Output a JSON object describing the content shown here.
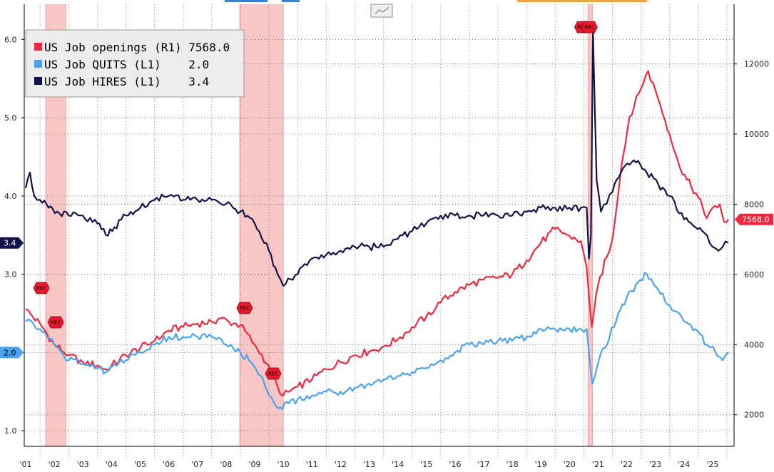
{
  "chart_data": {
    "type": "line",
    "legend": {
      "placement": "top-left",
      "items": [
        {
          "series": "openings",
          "label": "US Job openings (R1) 7568.0"
        },
        {
          "series": "quits",
          "label": "US Job QUITS (L1)    2.0"
        },
        {
          "series": "hires",
          "label": "US Job HIRES (L1)    3.4"
        }
      ]
    },
    "left_axis": {
      "ticks": [
        "1.0",
        "2.0",
        "3.0",
        "4.0",
        "5.0",
        "6.0"
      ],
      "range": [
        0.8,
        6.45
      ]
    },
    "right_axis": {
      "ticks": [
        "2000",
        "4000",
        "6000",
        "8000",
        "10000",
        "12000"
      ],
      "range": [
        1100,
        13700
      ]
    },
    "x_axis": {
      "ticks": [
        "'01",
        "'02",
        "'03",
        "'04",
        "'05",
        "'06",
        "'07",
        "'08",
        "'09",
        "'10",
        "'11",
        "'12",
        "'13",
        "'14",
        "'15",
        "'16",
        "'17",
        "'18",
        "'19",
        "'20",
        "'21",
        "'22",
        "'23",
        "'24",
        "'25"
      ],
      "range": [
        2000.45,
        2025.25
      ]
    },
    "grid": true,
    "recessions": [
      [
        2001.2,
        2001.9
      ],
      [
        2007.98,
        2009.5
      ],
      [
        2020.15,
        2020.3
      ]
    ],
    "rec_label": "REC",
    "last_value_tags": [
      {
        "axis": "left",
        "value": 3.4,
        "text": "3.4",
        "color": "#12124a",
        "text_color": "#ffffff"
      },
      {
        "axis": "left",
        "value": 2.0,
        "text": "2.0",
        "color": "#4aa3ef",
        "text_color": "#000000"
      },
      {
        "axis": "right",
        "value": 7568,
        "text": "7568.0",
        "color": "#f0283e",
        "text_color": "#ffffff"
      }
    ],
    "series": [
      {
        "name": "US Job openings (R1)",
        "axis": "right",
        "color": "#f0283e",
        "points": [
          [
            2000.5,
            5000
          ],
          [
            2001.0,
            4600
          ],
          [
            2001.5,
            4000
          ],
          [
            2002.0,
            3700
          ],
          [
            2002.5,
            3500
          ],
          [
            2003.0,
            3400
          ],
          [
            2003.3,
            3300
          ],
          [
            2003.5,
            3400
          ],
          [
            2004.0,
            3700
          ],
          [
            2004.5,
            3900
          ],
          [
            2005.0,
            4100
          ],
          [
            2005.5,
            4400
          ],
          [
            2006.0,
            4500
          ],
          [
            2006.5,
            4600
          ],
          [
            2007.0,
            4650
          ],
          [
            2007.3,
            4750
          ],
          [
            2007.6,
            4650
          ],
          [
            2008.0,
            4550
          ],
          [
            2008.5,
            4000
          ],
          [
            2009.0,
            3400
          ],
          [
            2009.3,
            2800
          ],
          [
            2009.5,
            2550
          ],
          [
            2010.0,
            2800
          ],
          [
            2010.5,
            3000
          ],
          [
            2011.0,
            3300
          ],
          [
            2011.5,
            3500
          ],
          [
            2012.0,
            3700
          ],
          [
            2012.5,
            3800
          ],
          [
            2013.0,
            3950
          ],
          [
            2013.5,
            4150
          ],
          [
            2014.0,
            4500
          ],
          [
            2014.5,
            4800
          ],
          [
            2015.0,
            5200
          ],
          [
            2015.5,
            5500
          ],
          [
            2016.0,
            5700
          ],
          [
            2016.5,
            5850
          ],
          [
            2017.0,
            5900
          ],
          [
            2017.5,
            6000
          ],
          [
            2018.0,
            6400
          ],
          [
            2018.5,
            6900
          ],
          [
            2019.0,
            7300
          ],
          [
            2019.5,
            7100
          ],
          [
            2019.9,
            6950
          ],
          [
            2020.1,
            6200
          ],
          [
            2020.28,
            4500
          ],
          [
            2020.5,
            5700
          ],
          [
            2020.8,
            6500
          ],
          [
            2021.0,
            7000
          ],
          [
            2021.3,
            9000
          ],
          [
            2021.6,
            10500
          ],
          [
            2022.0,
            11300
          ],
          [
            2022.25,
            11800
          ],
          [
            2022.6,
            11000
          ],
          [
            2023.0,
            10000
          ],
          [
            2023.3,
            9200
          ],
          [
            2023.6,
            8700
          ],
          [
            2024.0,
            8200
          ],
          [
            2024.3,
            7600
          ],
          [
            2024.5,
            7900
          ],
          [
            2024.75,
            8000
          ],
          [
            2024.9,
            7500
          ],
          [
            2025.05,
            7568
          ]
        ]
      },
      {
        "name": "US Job QUITS (L1)",
        "axis": "left",
        "color": "#4aa3ef",
        "points": [
          [
            2000.5,
            2.4
          ],
          [
            2000.7,
            2.4
          ],
          [
            2001.0,
            2.3
          ],
          [
            2001.5,
            2.1
          ],
          [
            2002.0,
            1.9
          ],
          [
            2002.5,
            1.85
          ],
          [
            2003.0,
            1.8
          ],
          [
            2003.3,
            1.75
          ],
          [
            2003.6,
            1.85
          ],
          [
            2004.0,
            1.9
          ],
          [
            2004.5,
            2.0
          ],
          [
            2005.0,
            2.1
          ],
          [
            2005.5,
            2.2
          ],
          [
            2006.0,
            2.2
          ],
          [
            2006.5,
            2.2
          ],
          [
            2007.0,
            2.2
          ],
          [
            2007.5,
            2.1
          ],
          [
            2008.0,
            2.0
          ],
          [
            2008.3,
            1.9
          ],
          [
            2008.7,
            1.7
          ],
          [
            2009.0,
            1.45
          ],
          [
            2009.4,
            1.3
          ],
          [
            2009.7,
            1.35
          ],
          [
            2010.0,
            1.4
          ],
          [
            2010.5,
            1.45
          ],
          [
            2011.0,
            1.5
          ],
          [
            2011.5,
            1.5
          ],
          [
            2012.0,
            1.55
          ],
          [
            2012.5,
            1.6
          ],
          [
            2013.0,
            1.65
          ],
          [
            2013.5,
            1.7
          ],
          [
            2014.0,
            1.75
          ],
          [
            2014.5,
            1.8
          ],
          [
            2015.0,
            1.9
          ],
          [
            2015.5,
            2.0
          ],
          [
            2016.0,
            2.1
          ],
          [
            2016.5,
            2.1
          ],
          [
            2017.0,
            2.15
          ],
          [
            2017.5,
            2.15
          ],
          [
            2018.0,
            2.2
          ],
          [
            2018.5,
            2.3
          ],
          [
            2019.0,
            2.3
          ],
          [
            2019.5,
            2.3
          ],
          [
            2019.9,
            2.3
          ],
          [
            2020.1,
            2.3
          ],
          [
            2020.3,
            1.6
          ],
          [
            2020.6,
            2.0
          ],
          [
            2020.9,
            2.2
          ],
          [
            2021.2,
            2.5
          ],
          [
            2021.5,
            2.7
          ],
          [
            2021.9,
            2.9
          ],
          [
            2022.2,
            3.0
          ],
          [
            2022.6,
            2.8
          ],
          [
            2023.0,
            2.6
          ],
          [
            2023.5,
            2.4
          ],
          [
            2023.9,
            2.3
          ],
          [
            2024.3,
            2.1
          ],
          [
            2024.6,
            2.0
          ],
          [
            2024.85,
            1.9
          ],
          [
            2025.05,
            2.0
          ]
        ]
      },
      {
        "name": "US Job HIRES (L1)",
        "axis": "left",
        "color": "#12124a",
        "points": [
          [
            2000.5,
            4.1
          ],
          [
            2000.65,
            4.3
          ],
          [
            2000.8,
            4.0
          ],
          [
            2001.0,
            3.95
          ],
          [
            2001.3,
            3.85
          ],
          [
            2001.6,
            3.8
          ],
          [
            2002.0,
            3.75
          ],
          [
            2002.5,
            3.75
          ],
          [
            2003.0,
            3.65
          ],
          [
            2003.3,
            3.5
          ],
          [
            2003.6,
            3.6
          ],
          [
            2004.0,
            3.75
          ],
          [
            2004.5,
            3.85
          ],
          [
            2005.0,
            3.95
          ],
          [
            2005.5,
            4.0
          ],
          [
            2006.0,
            3.95
          ],
          [
            2006.5,
            3.95
          ],
          [
            2007.0,
            3.95
          ],
          [
            2007.5,
            3.9
          ],
          [
            2008.0,
            3.8
          ],
          [
            2008.5,
            3.65
          ],
          [
            2009.0,
            3.3
          ],
          [
            2009.3,
            3.0
          ],
          [
            2009.5,
            2.85
          ],
          [
            2010.0,
            3.0
          ],
          [
            2010.5,
            3.2
          ],
          [
            2011.0,
            3.25
          ],
          [
            2011.5,
            3.3
          ],
          [
            2012.0,
            3.35
          ],
          [
            2012.5,
            3.35
          ],
          [
            2013.0,
            3.35
          ],
          [
            2013.5,
            3.45
          ],
          [
            2014.0,
            3.55
          ],
          [
            2014.5,
            3.65
          ],
          [
            2015.0,
            3.75
          ],
          [
            2015.5,
            3.75
          ],
          [
            2016.0,
            3.75
          ],
          [
            2016.5,
            3.75
          ],
          [
            2017.0,
            3.75
          ],
          [
            2017.5,
            3.75
          ],
          [
            2018.0,
            3.8
          ],
          [
            2018.5,
            3.85
          ],
          [
            2019.0,
            3.85
          ],
          [
            2019.5,
            3.85
          ],
          [
            2019.9,
            3.85
          ],
          [
            2020.1,
            3.85
          ],
          [
            2020.18,
            3.2
          ],
          [
            2020.25,
            3.5
          ],
          [
            2020.32,
            6.1
          ],
          [
            2020.45,
            4.2
          ],
          [
            2020.6,
            3.8
          ],
          [
            2020.8,
            3.9
          ],
          [
            2021.0,
            4.05
          ],
          [
            2021.3,
            4.3
          ],
          [
            2021.6,
            4.4
          ],
          [
            2021.9,
            4.45
          ],
          [
            2022.2,
            4.3
          ],
          [
            2022.6,
            4.15
          ],
          [
            2023.0,
            4.0
          ],
          [
            2023.5,
            3.7
          ],
          [
            2023.9,
            3.6
          ],
          [
            2024.3,
            3.5
          ],
          [
            2024.5,
            3.35
          ],
          [
            2024.7,
            3.3
          ],
          [
            2024.85,
            3.35
          ],
          [
            2025.05,
            3.4
          ]
        ]
      }
    ]
  }
}
